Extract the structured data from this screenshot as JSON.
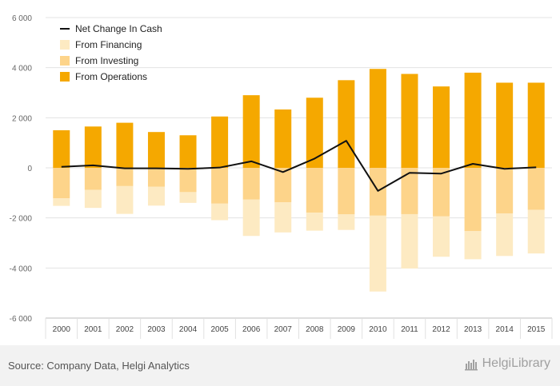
{
  "chart_data": {
    "type": "bar",
    "categories": [
      "2000",
      "2001",
      "2002",
      "2003",
      "2004",
      "2005",
      "2006",
      "2007",
      "2008",
      "2009",
      "2010",
      "2011",
      "2012",
      "2013",
      "2014",
      "2015"
    ],
    "series": [
      {
        "name": "From Operations",
        "type": "bar",
        "color": "#f5a800",
        "values": [
          1500,
          1650,
          1800,
          1430,
          1300,
          2050,
          2900,
          2330,
          2800,
          3500,
          3950,
          3750,
          3250,
          3800,
          3400,
          3400
        ]
      },
      {
        "name": "From Investing",
        "type": "bar",
        "color": "#fdd48a",
        "values": [
          -1220,
          -880,
          -730,
          -750,
          -970,
          -1430,
          -1270,
          -1380,
          -1790,
          -1860,
          -1910,
          -1850,
          -1940,
          -2530,
          -1820,
          -1680
        ]
      },
      {
        "name": "From Financing",
        "type": "bar",
        "color": "#fdeac2",
        "values": [
          -300,
          -720,
          -1110,
          -760,
          -430,
          -660,
          -1450,
          -1200,
          -720,
          -620,
          -3030,
          -2170,
          -1610,
          -1120,
          -1700,
          -1740
        ]
      },
      {
        "name": "Net Change In Cash",
        "type": "line",
        "color": "#111111",
        "values": [
          40,
          100,
          -20,
          -20,
          -40,
          10,
          260,
          -170,
          370,
          1080,
          -920,
          -200,
          -230,
          160,
          -40,
          20
        ]
      }
    ],
    "ylim": [
      -6000,
      6000
    ],
    "yticks": [
      -6000,
      -4000,
      -2000,
      0,
      2000,
      4000,
      6000
    ],
    "ytick_labels": [
      "-6 000",
      "-4 000",
      "-2 000",
      "0",
      "2 000",
      "4 000",
      "6 000"
    ],
    "legend": [
      "Net Change In Cash",
      "From Financing",
      "From Investing",
      "From Operations"
    ],
    "legend_position": "top-left",
    "grid": true
  },
  "footer": {
    "source": "Source: Company Data, Helgi Analytics",
    "brand": "HelgiLibrary"
  }
}
